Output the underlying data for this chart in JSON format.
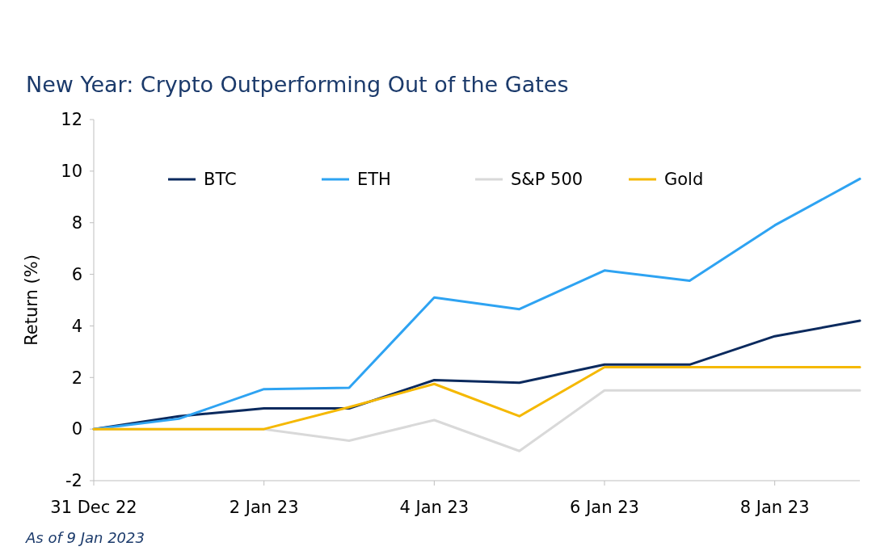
{
  "chart_data": {
    "type": "line",
    "title": "New Year: Crypto Outperforming Out of the Gates",
    "ylabel": "Return (%)",
    "x": [
      "2022-12-31",
      "2023-01-01",
      "2023-01-02",
      "2023-01-03",
      "2023-01-04",
      "2023-01-05",
      "2023-01-06",
      "2023-01-07",
      "2023-01-08",
      "2023-01-09"
    ],
    "xlim": [
      "2022-12-31",
      "2023-01-09"
    ],
    "xticks": [
      {
        "value": "2022-12-31",
        "label": "31 Dec 22"
      },
      {
        "value": "2023-01-02",
        "label": "2 Jan 23"
      },
      {
        "value": "2023-01-04",
        "label": "4 Jan 23"
      },
      {
        "value": "2023-01-06",
        "label": "6 Jan 23"
      },
      {
        "value": "2023-01-08",
        "label": "8 Jan 23"
      }
    ],
    "ylim": [
      -2,
      12
    ],
    "yticks": [
      -2,
      0,
      2,
      4,
      6,
      8,
      10,
      12
    ],
    "series": [
      {
        "name": "BTC",
        "color": "#0b2a5e",
        "values": [
          0,
          0.5,
          0.8,
          0.8,
          1.9,
          1.8,
          2.5,
          2.5,
          3.6,
          4.2
        ]
      },
      {
        "name": "ETH",
        "color": "#2ea3f2",
        "values": [
          0,
          0.4,
          1.55,
          1.6,
          5.1,
          4.65,
          6.15,
          5.75,
          7.9,
          9.7
        ]
      },
      {
        "name": "S&P 500",
        "color": "#d9d9d9",
        "values": [
          0,
          0,
          0,
          -0.45,
          0.35,
          -0.85,
          1.5,
          1.5,
          1.5,
          1.5
        ]
      },
      {
        "name": "Gold",
        "color": "#f5b800",
        "values": [
          0,
          0,
          0,
          0.85,
          1.75,
          0.5,
          2.4,
          2.4,
          2.4,
          2.4
        ]
      }
    ],
    "legend": "top",
    "marker": "none",
    "line_style": "solid",
    "annotations": [
      "As of 9 Jan 2023"
    ]
  }
}
